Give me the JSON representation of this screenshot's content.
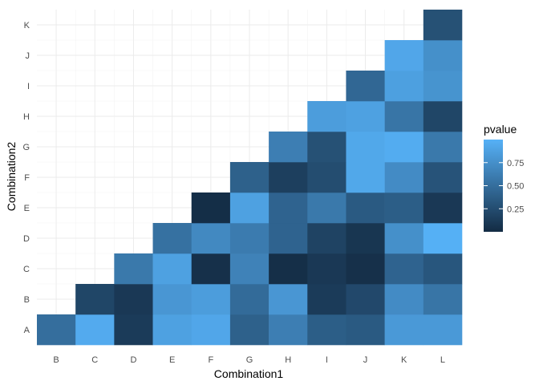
{
  "chart_data": {
    "type": "heatmap",
    "xlabel": "Combination1",
    "ylabel": "Combination2",
    "x_categories": [
      "B",
      "C",
      "D",
      "E",
      "F",
      "G",
      "H",
      "I",
      "J",
      "K",
      "L"
    ],
    "y_categories": [
      "A",
      "B",
      "C",
      "D",
      "E",
      "F",
      "G",
      "H",
      "I",
      "J",
      "K"
    ],
    "legend": {
      "title": "pvalue",
      "placement": "right",
      "ticks": [
        "0.25",
        "0.50",
        "0.75"
      ],
      "tick_values": [
        0.25,
        0.5,
        0.75
      ],
      "range": [
        0.0,
        1.0
      ],
      "low_color": "#132b43",
      "high_color": "#56b1f7"
    },
    "grid": true,
    "cells": [
      {
        "x": "B",
        "y": "A",
        "value": 0.5
      },
      {
        "x": "C",
        "y": "A",
        "value": 0.95
      },
      {
        "x": "D",
        "y": "A",
        "value": 0.12
      },
      {
        "x": "E",
        "y": "A",
        "value": 0.88
      },
      {
        "x": "F",
        "y": "A",
        "value": 0.92
      },
      {
        "x": "G",
        "y": "A",
        "value": 0.4
      },
      {
        "x": "H",
        "y": "A",
        "value": 0.62
      },
      {
        "x": "I",
        "y": "A",
        "value": 0.38
      },
      {
        "x": "J",
        "y": "A",
        "value": 0.35
      },
      {
        "x": "K",
        "y": "A",
        "value": 0.82
      },
      {
        "x": "L",
        "y": "A",
        "value": 0.82
      },
      {
        "x": "C",
        "y": "B",
        "value": 0.2
      },
      {
        "x": "D",
        "y": "B",
        "value": 0.1
      },
      {
        "x": "E",
        "y": "B",
        "value": 0.8
      },
      {
        "x": "F",
        "y": "B",
        "value": 0.85
      },
      {
        "x": "G",
        "y": "B",
        "value": 0.48
      },
      {
        "x": "H",
        "y": "B",
        "value": 0.8
      },
      {
        "x": "I",
        "y": "B",
        "value": 0.12
      },
      {
        "x": "J",
        "y": "B",
        "value": 0.22
      },
      {
        "x": "K",
        "y": "B",
        "value": 0.72
      },
      {
        "x": "L",
        "y": "B",
        "value": 0.55
      },
      {
        "x": "D",
        "y": "C",
        "value": 0.58
      },
      {
        "x": "E",
        "y": "C",
        "value": 0.88
      },
      {
        "x": "F",
        "y": "C",
        "value": 0.04
      },
      {
        "x": "G",
        "y": "C",
        "value": 0.65
      },
      {
        "x": "H",
        "y": "C",
        "value": 0.03
      },
      {
        "x": "I",
        "y": "C",
        "value": 0.1
      },
      {
        "x": "J",
        "y": "C",
        "value": 0.04
      },
      {
        "x": "K",
        "y": "C",
        "value": 0.42
      },
      {
        "x": "L",
        "y": "C",
        "value": 0.32
      },
      {
        "x": "E",
        "y": "D",
        "value": 0.52
      },
      {
        "x": "F",
        "y": "D",
        "value": 0.7
      },
      {
        "x": "G",
        "y": "D",
        "value": 0.6
      },
      {
        "x": "H",
        "y": "D",
        "value": 0.42
      },
      {
        "x": "I",
        "y": "D",
        "value": 0.18
      },
      {
        "x": "J",
        "y": "D",
        "value": 0.08
      },
      {
        "x": "K",
        "y": "D",
        "value": 0.75
      },
      {
        "x": "L",
        "y": "D",
        "value": 0.99
      },
      {
        "x": "F",
        "y": "E",
        "value": 0.02
      },
      {
        "x": "G",
        "y": "E",
        "value": 0.88
      },
      {
        "x": "H",
        "y": "E",
        "value": 0.42
      },
      {
        "x": "I",
        "y": "E",
        "value": 0.58
      },
      {
        "x": "J",
        "y": "E",
        "value": 0.35
      },
      {
        "x": "K",
        "y": "E",
        "value": 0.38
      },
      {
        "x": "L",
        "y": "E",
        "value": 0.1
      },
      {
        "x": "G",
        "y": "F",
        "value": 0.4
      },
      {
        "x": "H",
        "y": "F",
        "value": 0.15
      },
      {
        "x": "I",
        "y": "F",
        "value": 0.25
      },
      {
        "x": "J",
        "y": "F",
        "value": 0.93
      },
      {
        "x": "K",
        "y": "F",
        "value": 0.72
      },
      {
        "x": "L",
        "y": "F",
        "value": 0.3
      },
      {
        "x": "H",
        "y": "G",
        "value": 0.62
      },
      {
        "x": "I",
        "y": "G",
        "value": 0.28
      },
      {
        "x": "J",
        "y": "G",
        "value": 0.93
      },
      {
        "x": "K",
        "y": "G",
        "value": 0.96
      },
      {
        "x": "L",
        "y": "G",
        "value": 0.58
      },
      {
        "x": "I",
        "y": "H",
        "value": 0.85
      },
      {
        "x": "J",
        "y": "H",
        "value": 0.88
      },
      {
        "x": "K",
        "y": "H",
        "value": 0.55
      },
      {
        "x": "L",
        "y": "H",
        "value": 0.2
      },
      {
        "x": "J",
        "y": "I",
        "value": 0.45
      },
      {
        "x": "K",
        "y": "I",
        "value": 0.87
      },
      {
        "x": "L",
        "y": "I",
        "value": 0.78
      },
      {
        "x": "K",
        "y": "J",
        "value": 0.92
      },
      {
        "x": "L",
        "y": "J",
        "value": 0.75
      },
      {
        "x": "L",
        "y": "K",
        "value": 0.28
      }
    ]
  }
}
